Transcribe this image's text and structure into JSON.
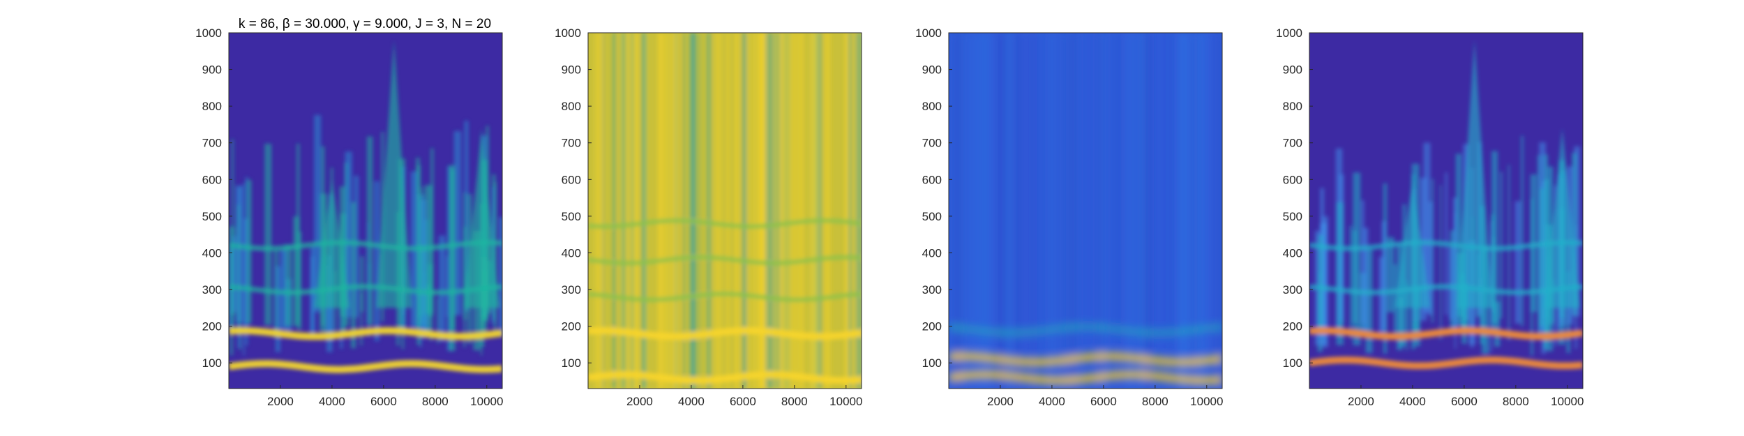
{
  "figure": {
    "title": "k = 86, β = 30.000, γ = 9.000, J = 3, N = 20"
  },
  "chart_data": [
    {
      "type": "heatmap",
      "title": "k = 86, β = 30.000, γ = 9.000, J = 3, N = 20",
      "xlabel": "",
      "ylabel": "",
      "xlim": [
        0,
        10600
      ],
      "ylim": [
        30,
        1000
      ],
      "xticks": [
        2000,
        4000,
        6000,
        8000,
        10000
      ],
      "yticks": [
        100,
        200,
        300,
        400,
        500,
        600,
        700,
        800,
        900,
        1000
      ],
      "colormap": "parula",
      "colors": {
        "background": "#3d2aa3",
        "low": "#2c8fd6",
        "mid": "#1fb7a0",
        "high": "#f6d82a"
      },
      "features": {
        "horizontal_bands_y": [
          90,
          180,
          300,
          420
        ],
        "peak_bursts": [
          {
            "x": 6400,
            "y": 980
          },
          {
            "x": 9800,
            "y": 740
          },
          {
            "x": 4000,
            "y": 600
          }
        ]
      },
      "grid": false
    },
    {
      "type": "heatmap",
      "title": "",
      "xlabel": "",
      "ylabel": "",
      "xlim": [
        0,
        10600
      ],
      "ylim": [
        30,
        1000
      ],
      "xticks": [
        2000,
        4000,
        6000,
        8000,
        10000
      ],
      "yticks": [
        100,
        200,
        300,
        400,
        500,
        600,
        700,
        800,
        900,
        1000
      ],
      "colormap": "parula",
      "colors": {
        "background": "#c9c03a",
        "low": "#2a9fb0",
        "mid": "#8cc24a",
        "high": "#f7d42b"
      },
      "features": {
        "horizontal_bands_y": [
          60,
          180,
          280,
          380,
          480
        ]
      },
      "grid": false
    },
    {
      "type": "heatmap",
      "title": "",
      "xlabel": "",
      "ylabel": "",
      "xlim": [
        0,
        10600
      ],
      "ylim": [
        30,
        1000
      ],
      "xticks": [
        2000,
        4000,
        6000,
        8000,
        10000
      ],
      "yticks": [
        100,
        200,
        300,
        400,
        500,
        600,
        700,
        800,
        900,
        1000
      ],
      "colormap": "parula",
      "colors": {
        "background": "#2f5bd9",
        "low": "#2f80e8",
        "mid": "#20b3b8",
        "high": "#f3c925"
      },
      "features": {
        "horizontal_bands_y": [
          60,
          110,
          190
        ]
      },
      "grid": false
    },
    {
      "type": "heatmap",
      "title": "",
      "xlabel": "",
      "ylabel": "",
      "xlim": [
        0,
        10600
      ],
      "ylim": [
        30,
        1000
      ],
      "xticks": [
        2000,
        4000,
        6000,
        8000,
        10000
      ],
      "yticks": [
        100,
        200,
        300,
        400,
        500,
        600,
        700,
        800,
        900,
        1000
      ],
      "colormap": "parula",
      "colors": {
        "background": "#3d2aa3",
        "low": "#3f8de8",
        "mid": "#23b0c9",
        "high": "#f08a3a"
      },
      "features": {
        "horizontal_bands_y": [
          100,
          180,
          300,
          420
        ],
        "peak_bursts": [
          {
            "x": 6400,
            "y": 980
          },
          {
            "x": 9800,
            "y": 740
          },
          {
            "x": 4000,
            "y": 600
          }
        ]
      },
      "grid": false
    }
  ]
}
